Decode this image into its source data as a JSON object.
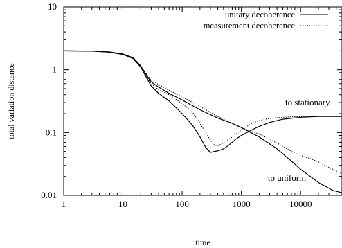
{
  "chart_data": {
    "type": "line",
    "title": "",
    "xlabel": "time",
    "ylabel": "total variation distance",
    "xscale": "log",
    "yscale": "log",
    "xlim": [
      1,
      50000
    ],
    "ylim": [
      0.01,
      10
    ],
    "grid": false,
    "legend_position": "top-right",
    "x_ticks": [
      {
        "value": 1,
        "label": "1"
      },
      {
        "value": 10,
        "label": "10"
      },
      {
        "value": 100,
        "label": "100"
      },
      {
        "value": 1000,
        "label": "1000"
      },
      {
        "value": 10000,
        "label": "10000"
      }
    ],
    "y_ticks": [
      {
        "value": 0.01,
        "label": "0.01"
      },
      {
        "value": 0.1,
        "label": "0.1"
      },
      {
        "value": 1,
        "label": "1"
      },
      {
        "value": 10,
        "label": "10"
      }
    ],
    "legend": [
      {
        "label": "unitary decoherence",
        "style": "solid"
      },
      {
        "label": "measurement decoherence",
        "style": "dotted"
      }
    ],
    "annotations": [
      {
        "text": "to stationary",
        "x": 5500,
        "y": 0.27
      },
      {
        "text": "to uniform",
        "x": 2800,
        "y": 0.017
      }
    ],
    "series": [
      {
        "group": "unitary decoherence",
        "target": "stationary",
        "style": "solid",
        "points": [
          [
            1,
            2.0
          ],
          [
            3,
            1.98
          ],
          [
            6,
            1.9
          ],
          [
            10,
            1.75
          ],
          [
            15,
            1.5
          ],
          [
            20,
            1.1
          ],
          [
            25,
            0.75
          ],
          [
            30,
            0.55
          ],
          [
            40,
            0.42
          ],
          [
            60,
            0.32
          ],
          [
            100,
            0.2
          ],
          [
            150,
            0.13
          ],
          [
            200,
            0.085
          ],
          [
            250,
            0.058
          ],
          [
            300,
            0.048
          ],
          [
            350,
            0.05
          ],
          [
            400,
            0.051
          ],
          [
            500,
            0.055
          ],
          [
            600,
            0.062
          ],
          [
            700,
            0.07
          ],
          [
            800,
            0.078
          ],
          [
            1000,
            0.09
          ],
          [
            1500,
            0.11
          ],
          [
            2000,
            0.125
          ],
          [
            3000,
            0.145
          ],
          [
            5000,
            0.163
          ],
          [
            10000,
            0.175
          ],
          [
            20000,
            0.18
          ],
          [
            50000,
            0.18
          ]
        ]
      },
      {
        "group": "unitary decoherence",
        "target": "uniform",
        "style": "solid",
        "points": [
          [
            1,
            2.0
          ],
          [
            3,
            1.98
          ],
          [
            6,
            1.92
          ],
          [
            10,
            1.78
          ],
          [
            15,
            1.55
          ],
          [
            20,
            1.15
          ],
          [
            25,
            0.82
          ],
          [
            30,
            0.64
          ],
          [
            40,
            0.53
          ],
          [
            60,
            0.42
          ],
          [
            100,
            0.33
          ],
          [
            200,
            0.23
          ],
          [
            400,
            0.17
          ],
          [
            700,
            0.14
          ],
          [
            1000,
            0.12
          ],
          [
            2000,
            0.085
          ],
          [
            4000,
            0.055
          ],
          [
            7000,
            0.035
          ],
          [
            10000,
            0.026
          ],
          [
            20000,
            0.016
          ],
          [
            35000,
            0.012
          ],
          [
            50000,
            0.011
          ]
        ]
      },
      {
        "group": "measurement decoherence",
        "target": "stationary",
        "style": "dotted",
        "points": [
          [
            1,
            2.0
          ],
          [
            3,
            1.98
          ],
          [
            6,
            1.9
          ],
          [
            10,
            1.75
          ],
          [
            15,
            1.5
          ],
          [
            20,
            1.1
          ],
          [
            25,
            0.78
          ],
          [
            30,
            0.6
          ],
          [
            40,
            0.48
          ],
          [
            60,
            0.4
          ],
          [
            100,
            0.29
          ],
          [
            150,
            0.21
          ],
          [
            200,
            0.14
          ],
          [
            250,
            0.1
          ],
          [
            300,
            0.075
          ],
          [
            350,
            0.063
          ],
          [
            400,
            0.062
          ],
          [
            500,
            0.068
          ],
          [
            700,
            0.085
          ],
          [
            1000,
            0.11
          ],
          [
            1500,
            0.14
          ],
          [
            2000,
            0.155
          ],
          [
            3000,
            0.168
          ],
          [
            5000,
            0.175
          ],
          [
            10000,
            0.18
          ],
          [
            20000,
            0.182
          ],
          [
            50000,
            0.183
          ]
        ]
      },
      {
        "group": "measurement decoherence",
        "target": "uniform",
        "style": "dotted",
        "points": [
          [
            1,
            2.0
          ],
          [
            3,
            1.98
          ],
          [
            6,
            1.92
          ],
          [
            10,
            1.78
          ],
          [
            15,
            1.55
          ],
          [
            20,
            1.15
          ],
          [
            25,
            0.85
          ],
          [
            30,
            0.68
          ],
          [
            40,
            0.58
          ],
          [
            60,
            0.47
          ],
          [
            100,
            0.37
          ],
          [
            200,
            0.26
          ],
          [
            400,
            0.18
          ],
          [
            700,
            0.14
          ],
          [
            1000,
            0.12
          ],
          [
            2000,
            0.095
          ],
          [
            4000,
            0.068
          ],
          [
            7000,
            0.05
          ],
          [
            10000,
            0.043
          ],
          [
            15000,
            0.038
          ],
          [
            20000,
            0.034
          ],
          [
            30000,
            0.028
          ],
          [
            50000,
            0.022
          ]
        ]
      }
    ]
  }
}
